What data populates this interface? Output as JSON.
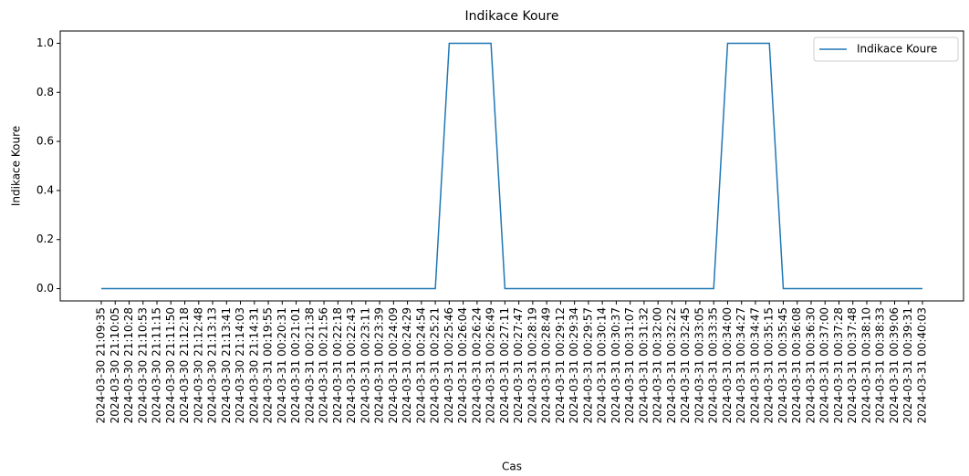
{
  "chart_data": {
    "type": "line",
    "title": "Indikace Koure",
    "x_label": "Cas",
    "y_label": "Indikace Koure",
    "categories": [
      "2024-03-30 21:09:35",
      "2024-03-30 21:10:05",
      "2024-03-30 21:10:28",
      "2024-03-30 21:10:53",
      "2024-03-30 21:11:15",
      "2024-03-30 21:11:50",
      "2024-03-30 21:12:18",
      "2024-03-30 21:12:48",
      "2024-03-30 21:13:13",
      "2024-03-30 21:13:41",
      "2024-03-30 21:14:03",
      "2024-03-30 21:14:31",
      "2024-03-31 00:19:55",
      "2024-03-31 00:20:31",
      "2024-03-31 00:21:01",
      "2024-03-31 00:21:38",
      "2024-03-31 00:21:56",
      "2024-03-31 00:22:18",
      "2024-03-31 00:22:43",
      "2024-03-31 00:23:11",
      "2024-03-31 00:23:39",
      "2024-03-31 00:24:09",
      "2024-03-31 00:24:29",
      "2024-03-31 00:24:54",
      "2024-03-31 00:25:21",
      "2024-03-31 00:25:46",
      "2024-03-31 00:26:04",
      "2024-03-31 00:26:24",
      "2024-03-31 00:26:49",
      "2024-03-31 00:27:11",
      "2024-03-31 00:27:47",
      "2024-03-31 00:28:19",
      "2024-03-31 00:28:49",
      "2024-03-31 00:29:12",
      "2024-03-31 00:29:34",
      "2024-03-31 00:29:57",
      "2024-03-31 00:30:14",
      "2024-03-31 00:30:37",
      "2024-03-31 00:31:07",
      "2024-03-31 00:31:32",
      "2024-03-31 00:32:00",
      "2024-03-31 00:32:22",
      "2024-03-31 00:32:45",
      "2024-03-31 00:33:05",
      "2024-03-31 00:33:35",
      "2024-03-31 00:34:00",
      "2024-03-31 00:34:27",
      "2024-03-31 00:34:47",
      "2024-03-31 00:35:15",
      "2024-03-31 00:35:45",
      "2024-03-31 00:36:08",
      "2024-03-31 00:36:30",
      "2024-03-31 00:37:00",
      "2024-03-31 00:37:28",
      "2024-03-31 00:37:48",
      "2024-03-31 00:38:10",
      "2024-03-31 00:38:33",
      "2024-03-31 00:39:06",
      "2024-03-31 00:39:31",
      "2024-03-31 00:40:03"
    ],
    "series": [
      {
        "name": "Indikace Koure",
        "color": "#1f77b4",
        "values": [
          0,
          0,
          0,
          0,
          0,
          0,
          0,
          0,
          0,
          0,
          0,
          0,
          0,
          0,
          0,
          0,
          0,
          0,
          0,
          0,
          0,
          0,
          0,
          0,
          0,
          1,
          1,
          1,
          1,
          0,
          0,
          0,
          0,
          0,
          0,
          0,
          0,
          0,
          0,
          0,
          0,
          0,
          0,
          0,
          0,
          1,
          1,
          1,
          1,
          0,
          0,
          0,
          0,
          0,
          0,
          0,
          0,
          0,
          0,
          0
        ]
      }
    ],
    "ylim": [
      -0.05,
      1.05
    ],
    "yticks": [
      {
        "value": 0,
        "label": "0.0"
      },
      {
        "value": 0.2,
        "label": "0.2"
      },
      {
        "value": 0.4,
        "label": "0.4"
      },
      {
        "value": 0.6,
        "label": "0.6"
      },
      {
        "value": 0.8,
        "label": "0.8"
      },
      {
        "value": 1,
        "label": "1.0"
      }
    ],
    "legend": "upper right"
  }
}
